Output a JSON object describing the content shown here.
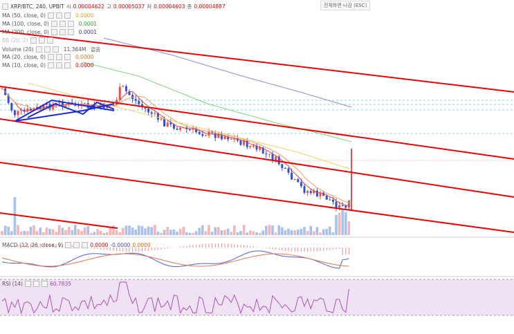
{
  "header": {
    "symbol": "XRP/BTC, 240, UPBIT",
    "open_label": "시",
    "open": "0.00004622",
    "high_label": "고",
    "high": "0.00005037",
    "low_label": "저",
    "low": "0.00004603",
    "close_label": "종",
    "close": "0.00004887"
  },
  "indicators": [
    {
      "name": "MA (50, close, 0)",
      "value": "0.0000"
    },
    {
      "name": "MA (100, close, 0)",
      "value": "0.0001"
    },
    {
      "name": "MA (200, close, 0)",
      "value": "0.0001"
    },
    {
      "name": "BB (20, 2)"
    },
    {
      "name": "Volume (20)",
      "value": "11.364M",
      "extra": "없음"
    },
    {
      "name": "MA (20, close, 0)",
      "value": "0.0000"
    },
    {
      "name": "MA (10, close, 0)",
      "value": "0.0000"
    }
  ],
  "exit_fullscreen": "전체화면 나감 (ESC)",
  "macd": {
    "name": "MACD (12, 26, close, 9)",
    "values": [
      "0.0000",
      "-0.0000",
      "0.0000"
    ]
  },
  "rsi": {
    "name": "RSI (14)",
    "value": "60.7835"
  }
}
